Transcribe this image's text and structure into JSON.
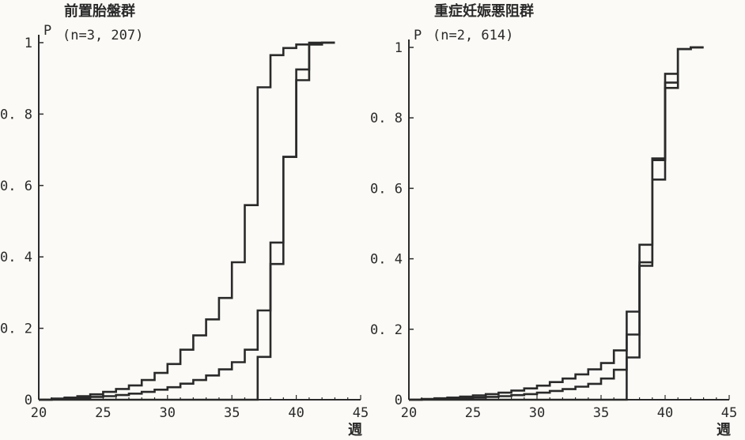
{
  "chart_data": [
    {
      "type": "line",
      "step": true,
      "title": "前置胎盤群",
      "subtitle": "(n=3, 207)",
      "ylabel": "P",
      "xlabel": "週",
      "xlim": [
        20,
        45
      ],
      "ylim": [
        0,
        1
      ],
      "x_ticks": [
        "20",
        "25",
        "30",
        "35",
        "40",
        "45"
      ],
      "y_ticks": [
        "0",
        "0. 2",
        "0. 4",
        "0. 6",
        "0. 8",
        "1"
      ],
      "series": [
        {
          "x": [
            20,
            21,
            22,
            23,
            24,
            25,
            26,
            27,
            28,
            29,
            30,
            31,
            32,
            33,
            34,
            35,
            36,
            37,
            38,
            39,
            40,
            41,
            42,
            43
          ],
          "y": [
            0,
            0.003,
            0.006,
            0.01,
            0.015,
            0.022,
            0.03,
            0.04,
            0.055,
            0.075,
            0.1,
            0.14,
            0.18,
            0.225,
            0.285,
            0.385,
            0.545,
            0.875,
            0.965,
            0.985,
            0.995,
            1.0,
            1.0,
            1.0
          ]
        },
        {
          "x": [
            20,
            21,
            22,
            23,
            24,
            25,
            26,
            27,
            28,
            29,
            30,
            31,
            32,
            33,
            34,
            35,
            36,
            37,
            38,
            39,
            40,
            41,
            42,
            43
          ],
          "y": [
            0,
            0.002,
            0.003,
            0.005,
            0.008,
            0.01,
            0.013,
            0.017,
            0.022,
            0.028,
            0.035,
            0.045,
            0.055,
            0.068,
            0.085,
            0.105,
            0.14,
            0.25,
            0.44,
            0.68,
            0.925,
            0.995,
            1.0,
            1.0
          ]
        },
        {
          "x": [
            20,
            37,
            38,
            39,
            40,
            41,
            42,
            43
          ],
          "y": [
            0,
            0.12,
            0.38,
            0.68,
            0.895,
            0.995,
            1.0,
            1.0
          ]
        }
      ]
    },
    {
      "type": "line",
      "step": true,
      "title": "重症妊娠悪阻群",
      "subtitle": "(n=2, 614)",
      "ylabel": "P",
      "xlabel": "週",
      "xlim": [
        20,
        45
      ],
      "ylim": [
        0,
        1
      ],
      "x_ticks": [
        "20",
        "25",
        "30",
        "35",
        "40",
        "45"
      ],
      "y_ticks": [
        "0",
        "0. 2",
        "0. 4",
        "0. 6",
        "0. 8",
        "1"
      ],
      "series": [
        {
          "x": [
            20,
            21,
            22,
            23,
            24,
            25,
            26,
            27,
            28,
            29,
            30,
            31,
            32,
            33,
            34,
            35,
            36,
            37,
            38,
            39,
            40,
            41,
            42,
            43
          ],
          "y": [
            0,
            0.002,
            0.004,
            0.006,
            0.009,
            0.012,
            0.016,
            0.02,
            0.026,
            0.032,
            0.04,
            0.05,
            0.06,
            0.072,
            0.086,
            0.104,
            0.14,
            0.25,
            0.44,
            0.68,
            0.925,
            0.995,
            1.0,
            1.0
          ]
        },
        {
          "x": [
            20,
            21,
            22,
            23,
            24,
            25,
            26,
            27,
            28,
            29,
            30,
            31,
            32,
            33,
            34,
            35,
            36,
            37,
            38,
            39,
            40,
            41,
            42,
            43
          ],
          "y": [
            0,
            0.001,
            0.002,
            0.003,
            0.004,
            0.006,
            0.008,
            0.01,
            0.013,
            0.016,
            0.02,
            0.025,
            0.03,
            0.037,
            0.045,
            0.06,
            0.085,
            0.185,
            0.38,
            0.625,
            0.885,
            0.995,
            1.0,
            1.0
          ]
        },
        {
          "x": [
            20,
            37,
            38,
            39,
            40,
            41,
            42,
            43
          ],
          "y": [
            0,
            0.12,
            0.39,
            0.685,
            0.9,
            0.995,
            1.0,
            1.0
          ]
        }
      ]
    }
  ],
  "colors": {
    "ink": "#2a2a2a",
    "background": "#fbfaf6"
  }
}
